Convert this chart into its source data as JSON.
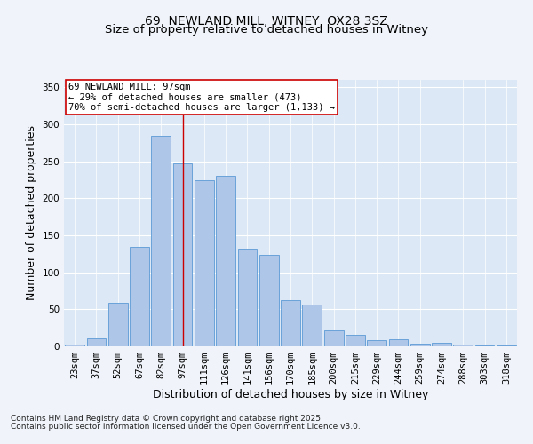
{
  "title1": "69, NEWLAND MILL, WITNEY, OX28 3SZ",
  "title2": "Size of property relative to detached houses in Witney",
  "xlabel": "Distribution of detached houses by size in Witney",
  "ylabel": "Number of detached properties",
  "categories": [
    "23sqm",
    "37sqm",
    "52sqm",
    "67sqm",
    "82sqm",
    "97sqm",
    "111sqm",
    "126sqm",
    "141sqm",
    "156sqm",
    "170sqm",
    "185sqm",
    "200sqm",
    "215sqm",
    "229sqm",
    "244sqm",
    "259sqm",
    "274sqm",
    "288sqm",
    "303sqm",
    "318sqm"
  ],
  "values": [
    2,
    11,
    59,
    135,
    285,
    247,
    225,
    230,
    132,
    124,
    63,
    56,
    22,
    16,
    9,
    10,
    4,
    5,
    2,
    1,
    1
  ],
  "bar_color": "#aec6e8",
  "bar_edge_color": "#5b9bd5",
  "highlight_index": 5,
  "highlight_line_color": "#cc0000",
  "annotation_text": "69 NEWLAND MILL: 97sqm\n← 29% of detached houses are smaller (473)\n70% of semi-detached houses are larger (1,133) →",
  "annotation_box_color": "#cc0000",
  "ylim": [
    0,
    360
  ],
  "yticks": [
    0,
    50,
    100,
    150,
    200,
    250,
    300,
    350
  ],
  "fig_bg_color": "#f0f4fa",
  "axes_bg_color": "#dce8f5",
  "grid_color": "#ffffff",
  "footer1": "Contains HM Land Registry data © Crown copyright and database right 2025.",
  "footer2": "Contains public sector information licensed under the Open Government Licence v3.0.",
  "title_fontsize": 10,
  "subtitle_fontsize": 9.5,
  "axis_label_fontsize": 9,
  "tick_fontsize": 7.5,
  "annotation_fontsize": 7.5,
  "footer_fontsize": 6.5
}
